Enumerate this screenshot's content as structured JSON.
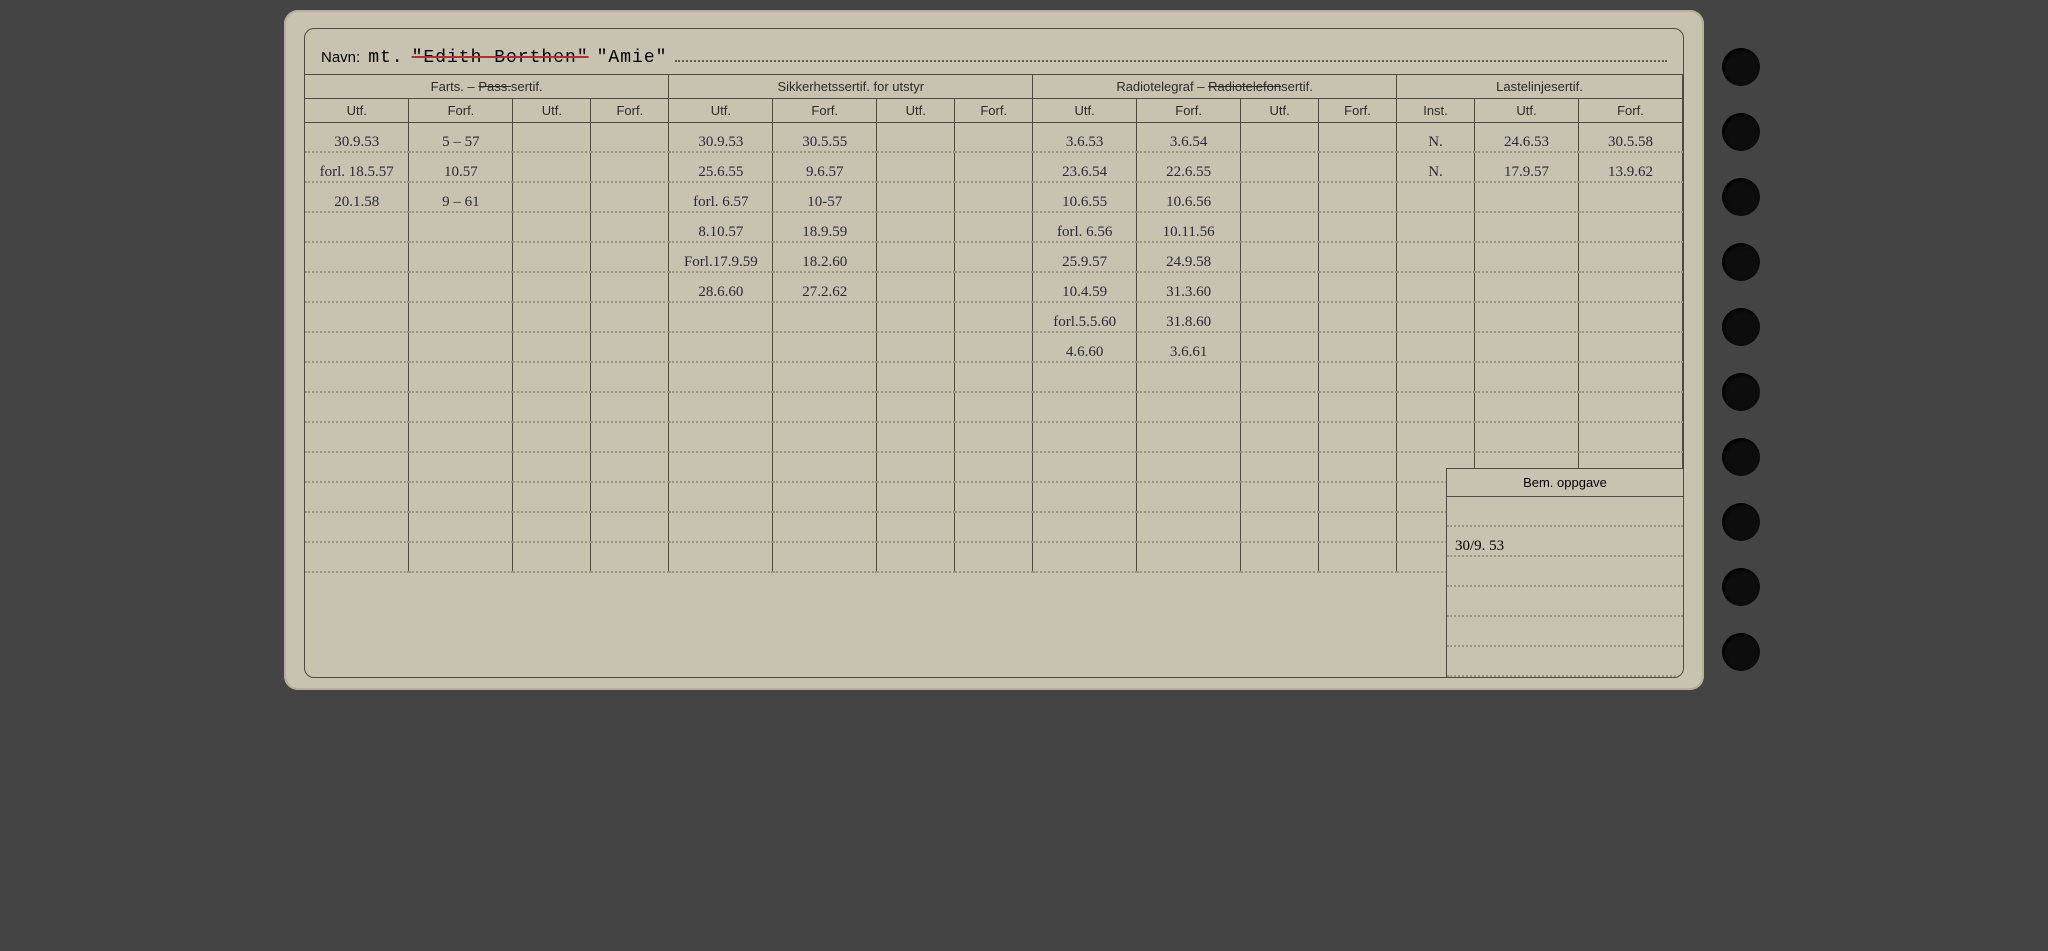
{
  "navn": {
    "label": "Navn:",
    "prefix": "mt.",
    "struck": "\"Edith Borthen\"",
    "current": "\"Amie\""
  },
  "groups": [
    {
      "title_pre": "Farts. – ",
      "title_strike": "Pass.",
      "title_post": "sertif.",
      "cols": [
        "Utf.",
        "Forf.",
        "Utf.",
        "Forf."
      ]
    },
    {
      "title_pre": "Sikkerhetssertif. for utstyr",
      "title_strike": "",
      "title_post": "",
      "cols": [
        "Utf.",
        "Forf.",
        "Utf.",
        "Forf."
      ]
    },
    {
      "title_pre": "Radiotelegraf – ",
      "title_strike": "Radiotelefon",
      "title_post": "sertif.",
      "cols": [
        "Utf.",
        "Forf.",
        "Utf.",
        "Forf."
      ]
    },
    {
      "title_pre": "Lastelinjesertif.",
      "title_strike": "",
      "title_post": "",
      "cols": [
        "Inst.",
        "Utf.",
        "Forf."
      ]
    }
  ],
  "rows": [
    [
      "30.9.53",
      "5 – 57",
      "",
      "",
      "30.9.53",
      "30.5.55",
      "",
      "",
      "3.6.53",
      "3.6.54",
      "",
      "",
      "N.",
      "24.6.53",
      "30.5.58"
    ],
    [
      "forl. 18.5.57",
      "10.57",
      "",
      "",
      "25.6.55",
      "9.6.57",
      "",
      "",
      "23.6.54",
      "22.6.55",
      "",
      "",
      "N.",
      "17.9.57",
      "13.9.62"
    ],
    [
      "20.1.58",
      "9 – 61",
      "",
      "",
      "forl. 6.57",
      "10-57",
      "",
      "",
      "10.6.55",
      "10.6.56",
      "",
      "",
      "",
      "",
      ""
    ],
    [
      "",
      "",
      "",
      "",
      "8.10.57",
      "18.9.59",
      "",
      "",
      "forl. 6.56",
      "10.11.56",
      "",
      "",
      "",
      "",
      ""
    ],
    [
      "",
      "",
      "",
      "",
      "Forl.17.9.59",
      "18.2.60",
      "",
      "",
      "25.9.57",
      "24.9.58",
      "",
      "",
      "",
      "",
      ""
    ],
    [
      "",
      "",
      "",
      "",
      "28.6.60",
      "27.2.62",
      "",
      "",
      "10.4.59",
      "31.3.60",
      "",
      "",
      "",
      "",
      ""
    ],
    [
      "",
      "",
      "",
      "",
      "",
      "",
      "",
      "",
      "forl.5.5.60",
      "31.8.60",
      "",
      "",
      "",
      "",
      ""
    ],
    [
      "",
      "",
      "",
      "",
      "",
      "",
      "",
      "",
      "4.6.60",
      "3.6.61",
      "",
      "",
      "",
      "",
      ""
    ],
    [
      "",
      "",
      "",
      "",
      "",
      "",
      "",
      "",
      "",
      "",
      "",
      "",
      "",
      "",
      ""
    ],
    [
      "",
      "",
      "",
      "",
      "",
      "",
      "",
      "",
      "",
      "",
      "",
      "",
      "",
      "",
      ""
    ],
    [
      "",
      "",
      "",
      "",
      "",
      "",
      "",
      "",
      "",
      "",
      "",
      "",
      "",
      "",
      ""
    ],
    [
      "",
      "",
      "",
      "",
      "",
      "",
      "",
      "",
      "",
      "",
      "",
      "",
      "",
      "",
      ""
    ],
    [
      "",
      "",
      "",
      "",
      "",
      "",
      "",
      "",
      "",
      "",
      "",
      "",
      "",
      "",
      ""
    ],
    [
      "",
      "",
      "",
      "",
      "",
      "",
      "",
      "",
      "",
      "",
      "",
      "",
      "",
      "",
      ""
    ],
    [
      "",
      "",
      "",
      "",
      "",
      "",
      "",
      "",
      "",
      "",
      "",
      "",
      "",
      "",
      ""
    ]
  ],
  "row_ink": [
    "ink-pencil",
    "ink-pencil",
    "ink-pencil",
    "ink-blue",
    "ink-blue",
    "ink-blue",
    "ink-blue",
    "ink-blue",
    "",
    "",
    "",
    "",
    "",
    "",
    ""
  ],
  "bem": {
    "title": "Bem. oppgave",
    "rows": [
      "",
      "30/9. 53",
      "",
      "",
      "",
      ""
    ]
  },
  "colors": {
    "paper": "#c8c2b0",
    "line": "#4a4a48",
    "dot": "#9a9588",
    "hole": "#0d0d0d"
  }
}
